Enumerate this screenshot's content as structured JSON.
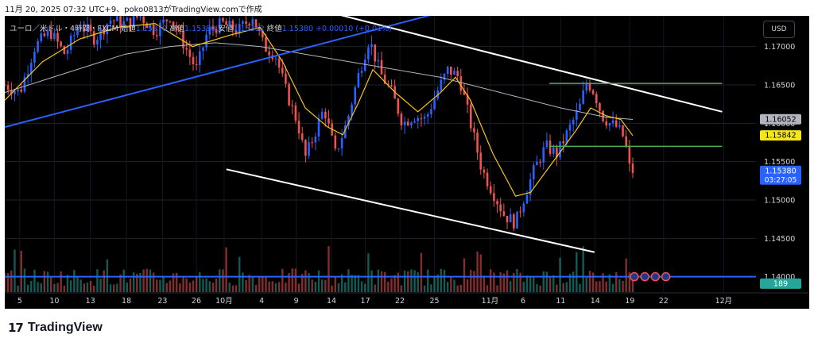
{
  "header": {
    "timestamp_line": "11月 20, 2025 07:32 UTC+9、poko0813がTradingView.comで作成"
  },
  "legend": {
    "symbol": "ユーロ／米ドル・4時間・FXCM",
    "open_label": "始値",
    "open_value": "1.15370",
    "high_label": "高値",
    "high_value": "1.15390",
    "low_label": "安値",
    "low_value": "1.15312",
    "close_label": "終値",
    "close_value": "1.15380",
    "change": "+0.00010 (+0.01%)"
  },
  "currency_button": "USD",
  "footer": {
    "logo_mark": "17",
    "brand": "TradingView"
  },
  "colors": {
    "background": "#000000",
    "bull": "#2962ff",
    "bear": "#ef5350",
    "vol_bull": "#26a69a",
    "vol_bear": "#ef5350",
    "ma_fast": "#f5c518",
    "ma_slow": "#b2b5be",
    "trendline_blue": "#2962ff",
    "channel_white": "#ffffff",
    "level_green": "#4caf50",
    "last_price_bg": "#2962ff"
  },
  "chart_data": {
    "type": "candlestick",
    "symbol": "EUR/USD",
    "timeframe": "4h",
    "y_axis": {
      "range": [
        1.138,
        1.174
      ],
      "ticks": [
        "1.17000",
        "1.16500",
        "1.16000",
        "1.15500",
        "1.15000",
        "1.14500",
        "1.14000"
      ],
      "tick_values": [
        1.17,
        1.165,
        1.16,
        1.155,
        1.15,
        1.145,
        1.14
      ]
    },
    "x_axis": {
      "ticks": [
        "5",
        "10",
        "13",
        "18",
        "23",
        "26",
        "10月",
        "4",
        "9",
        "14",
        "17",
        "22",
        "25",
        "11月",
        "6",
        "11",
        "14",
        "19",
        "22",
        "12月"
      ],
      "tick_fraction": [
        0.02,
        0.066,
        0.114,
        0.162,
        0.21,
        0.255,
        0.292,
        0.342,
        0.388,
        0.435,
        0.48,
        0.526,
        0.572,
        0.646,
        0.69,
        0.74,
        0.786,
        0.832,
        0.877,
        0.957
      ]
    },
    "price_path": [
      [
        0.0,
        1.165
      ],
      [
        0.02,
        1.164
      ],
      [
        0.04,
        1.17
      ],
      [
        0.06,
        1.172
      ],
      [
        0.08,
        1.169
      ],
      [
        0.1,
        1.173
      ],
      [
        0.12,
        1.171
      ],
      [
        0.14,
        1.1735
      ],
      [
        0.16,
        1.173
      ],
      [
        0.18,
        1.174
      ],
      [
        0.2,
        1.172
      ],
      [
        0.22,
        1.174
      ],
      [
        0.24,
        1.17
      ],
      [
        0.255,
        1.167
      ],
      [
        0.27,
        1.172
      ],
      [
        0.29,
        1.173
      ],
      [
        0.31,
        1.172
      ],
      [
        0.33,
        1.174
      ],
      [
        0.345,
        1.17
      ],
      [
        0.36,
        1.169
      ],
      [
        0.375,
        1.164
      ],
      [
        0.39,
        1.16
      ],
      [
        0.4,
        1.1555
      ],
      [
        0.41,
        1.158
      ],
      [
        0.425,
        1.162
      ],
      [
        0.44,
        1.156
      ],
      [
        0.455,
        1.16
      ],
      [
        0.47,
        1.166
      ],
      [
        0.485,
        1.171
      ],
      [
        0.5,
        1.1665
      ],
      [
        0.515,
        1.164
      ],
      [
        0.53,
        1.16
      ],
      [
        0.545,
        1.161
      ],
      [
        0.56,
        1.1605
      ],
      [
        0.575,
        1.164
      ],
      [
        0.59,
        1.167
      ],
      [
        0.605,
        1.166
      ],
      [
        0.62,
        1.16
      ],
      [
        0.635,
        1.154
      ],
      [
        0.65,
        1.151
      ],
      [
        0.665,
        1.148
      ],
      [
        0.68,
        1.147
      ],
      [
        0.69,
        1.15
      ],
      [
        0.705,
        1.154
      ],
      [
        0.72,
        1.157
      ],
      [
        0.735,
        1.156
      ],
      [
        0.75,
        1.159
      ],
      [
        0.765,
        1.162
      ],
      [
        0.775,
        1.1655
      ],
      [
        0.785,
        1.164
      ],
      [
        0.795,
        1.161
      ],
      [
        0.805,
        1.16
      ],
      [
        0.815,
        1.1595
      ],
      [
        0.825,
        1.158
      ],
      [
        0.832,
        1.154
      ],
      [
        0.836,
        1.1538
      ]
    ],
    "moving_average_fast": [
      [
        0.0,
        1.163
      ],
      [
        0.05,
        1.168
      ],
      [
        0.1,
        1.171
      ],
      [
        0.15,
        1.1725
      ],
      [
        0.2,
        1.173
      ],
      [
        0.25,
        1.17
      ],
      [
        0.3,
        1.1715
      ],
      [
        0.34,
        1.1725
      ],
      [
        0.37,
        1.168
      ],
      [
        0.4,
        1.162
      ],
      [
        0.43,
        1.1595
      ],
      [
        0.45,
        1.1585
      ],
      [
        0.47,
        1.1625
      ],
      [
        0.49,
        1.167
      ],
      [
        0.52,
        1.164
      ],
      [
        0.55,
        1.1615
      ],
      [
        0.58,
        1.164
      ],
      [
        0.6,
        1.166
      ],
      [
        0.62,
        1.163
      ],
      [
        0.65,
        1.156
      ],
      [
        0.68,
        1.1505
      ],
      [
        0.7,
        1.151
      ],
      [
        0.73,
        1.155
      ],
      [
        0.76,
        1.159
      ],
      [
        0.78,
        1.162
      ],
      [
        0.8,
        1.161
      ],
      [
        0.82,
        1.1605
      ],
      [
        0.836,
        1.1584
      ]
    ],
    "moving_average_slow": [
      [
        0.0,
        1.164
      ],
      [
        0.08,
        1.1665
      ],
      [
        0.16,
        1.169
      ],
      [
        0.22,
        1.17
      ],
      [
        0.28,
        1.1705
      ],
      [
        0.34,
        1.17
      ],
      [
        0.4,
        1.169
      ],
      [
        0.46,
        1.168
      ],
      [
        0.52,
        1.167
      ],
      [
        0.58,
        1.166
      ],
      [
        0.62,
        1.165
      ],
      [
        0.68,
        1.1635
      ],
      [
        0.74,
        1.162
      ],
      [
        0.8,
        1.1608
      ],
      [
        0.836,
        1.1605
      ]
    ],
    "trendlines": [
      {
        "kind": "ascending-blue",
        "from": [
          0.0,
          1.1595
        ],
        "to": [
          0.66,
          1.1765
        ]
      },
      {
        "kind": "channel-upper",
        "from": [
          0.31,
          1.1775
        ],
        "to": [
          0.955,
          1.1615
        ]
      },
      {
        "kind": "channel-lower",
        "from": [
          0.295,
          1.154
        ],
        "to": [
          0.785,
          1.1432
        ]
      },
      {
        "kind": "support-horizontal",
        "from": [
          0.0,
          1.14
        ],
        "to": [
          1.0,
          1.14
        ]
      }
    ],
    "horizontal_levels": [
      {
        "from": 0.725,
        "to": 0.955,
        "value": 1.1652
      },
      {
        "from": 0.725,
        "to": 0.955,
        "value": 1.157
      }
    ],
    "price_labels": [
      {
        "value": "1.16052",
        "y": 1.16052,
        "style": "gray"
      },
      {
        "value": "1.15842",
        "y": 1.15842,
        "style": "yellow"
      },
      {
        "value": "1.15380",
        "y": 1.1538,
        "style": "blue",
        "sub": "03:27:05"
      },
      {
        "value": "189",
        "y": 1.1391,
        "style": "teal"
      }
    ]
  }
}
